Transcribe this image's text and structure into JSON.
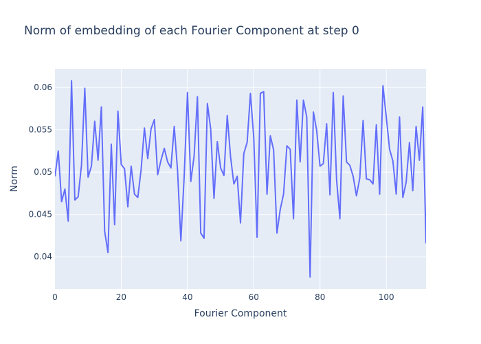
{
  "chart_data": {
    "type": "line",
    "title": "Norm of embedding of each Fourier Component at step 0",
    "xlabel": "Fourier Component",
    "ylabel": "Norm",
    "xlim": [
      0,
      112
    ],
    "ylim": [
      0.0362,
      0.0622
    ],
    "x_ticks": [
      0,
      20,
      40,
      60,
      80,
      100
    ],
    "x_tick_labels": [
      "0",
      "20",
      "40",
      "60",
      "80",
      "100"
    ],
    "y_ticks": [
      0.04,
      0.045,
      0.05,
      0.055,
      0.06
    ],
    "y_tick_labels": [
      "0.04",
      "0.045",
      "0.05",
      "0.055",
      "0.06"
    ],
    "grid": true,
    "plot_background": "#e5ecf6",
    "series": [
      {
        "color": "#636efa",
        "x": [
          0,
          1,
          2,
          3,
          4,
          5,
          6,
          7,
          8,
          9,
          10,
          11,
          12,
          13,
          14,
          15,
          16,
          17,
          18,
          19,
          20,
          21,
          22,
          23,
          24,
          25,
          26,
          27,
          28,
          29,
          30,
          31,
          32,
          33,
          34,
          35,
          36,
          37,
          38,
          39,
          40,
          41,
          42,
          43,
          44,
          45,
          46,
          47,
          48,
          49,
          50,
          51,
          52,
          53,
          54,
          55,
          56,
          57,
          58,
          59,
          60,
          61,
          62,
          63,
          64,
          65,
          66,
          67,
          68,
          69,
          70,
          71,
          72,
          73,
          74,
          75,
          76,
          77,
          78,
          79,
          80,
          81,
          82,
          83,
          84,
          85,
          86,
          87,
          88,
          89,
          90,
          91,
          92,
          93,
          94,
          95,
          96,
          97,
          98,
          99,
          100,
          101,
          102,
          103,
          104,
          105,
          106,
          107,
          108,
          109,
          110,
          111,
          112
        ],
        "values": [
          0.0495,
          0.0525,
          0.0465,
          0.048,
          0.0442,
          0.0608,
          0.0467,
          0.0471,
          0.0508,
          0.0599,
          0.0494,
          0.0507,
          0.056,
          0.0514,
          0.0577,
          0.043,
          0.0405,
          0.0533,
          0.0438,
          0.0572,
          0.0509,
          0.0504,
          0.0459,
          0.0507,
          0.0474,
          0.047,
          0.0503,
          0.0552,
          0.0516,
          0.0551,
          0.0562,
          0.0497,
          0.0514,
          0.0528,
          0.0512,
          0.0505,
          0.0554,
          0.0502,
          0.0419,
          0.0495,
          0.0594,
          0.0489,
          0.0519,
          0.0589,
          0.0428,
          0.0422,
          0.0581,
          0.0551,
          0.0469,
          0.0536,
          0.0505,
          0.0496,
          0.0567,
          0.0518,
          0.0486,
          0.0495,
          0.044,
          0.0522,
          0.0535,
          0.0593,
          0.0541,
          0.0423,
          0.0593,
          0.0595,
          0.0474,
          0.0543,
          0.0526,
          0.0428,
          0.0456,
          0.0474,
          0.0531,
          0.0527,
          0.0445,
          0.0585,
          0.0512,
          0.0585,
          0.0565,
          0.0376,
          0.0571,
          0.0549,
          0.0507,
          0.051,
          0.0557,
          0.0473,
          0.0594,
          0.0491,
          0.0445,
          0.059,
          0.0512,
          0.0508,
          0.0495,
          0.0472,
          0.0493,
          0.0561,
          0.0492,
          0.0491,
          0.0486,
          0.0556,
          0.0474,
          0.0602,
          0.0565,
          0.0527,
          0.0513,
          0.0474,
          0.0565,
          0.047,
          0.0488,
          0.0535,
          0.0478,
          0.0554,
          0.0514,
          0.0577,
          0.0416
        ]
      }
    ]
  }
}
